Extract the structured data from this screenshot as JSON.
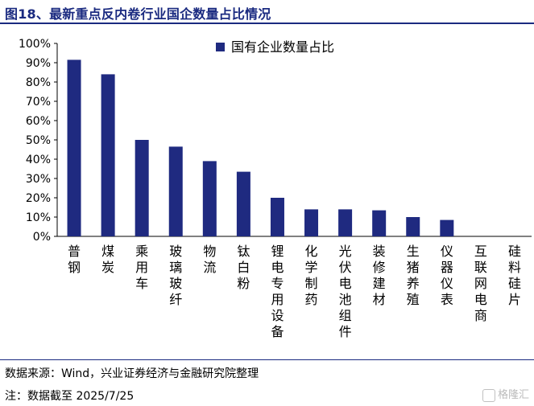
{
  "header": {
    "title": "图18、最新重点反内卷行业国企数量占比情况"
  },
  "chart_data": {
    "type": "bar",
    "title": "图18、最新重点反内卷行业国企数量占比情况",
    "categories": [
      "普钢",
      "煤炭",
      "乘用车",
      "玻璃玻纤",
      "物流",
      "钛白粉",
      "锂电专用设备",
      "化学制药",
      "光伏电池组件",
      "装修建材",
      "生猪养殖",
      "仪器仪表",
      "互联网电商",
      "硅料硅片"
    ],
    "series": [
      {
        "name": "国有企业数量占比",
        "values": [
          91.5,
          84,
          50,
          46.5,
          39,
          33.5,
          20,
          14,
          14,
          13.5,
          10,
          8.5,
          0,
          0
        ],
        "color": "#1f2a80"
      }
    ],
    "yticks": [
      "0%",
      "10%",
      "20%",
      "30%",
      "40%",
      "50%",
      "60%",
      "70%",
      "80%",
      "90%",
      "100%"
    ],
    "ylim": [
      0,
      100
    ],
    "grid": false,
    "legend": "top-center"
  },
  "footer": {
    "source": "数据来源：Wind，兴业证券经济与金融研究院整理",
    "note": "注：数据截至 2025/7/25",
    "watermark": "格隆汇"
  }
}
